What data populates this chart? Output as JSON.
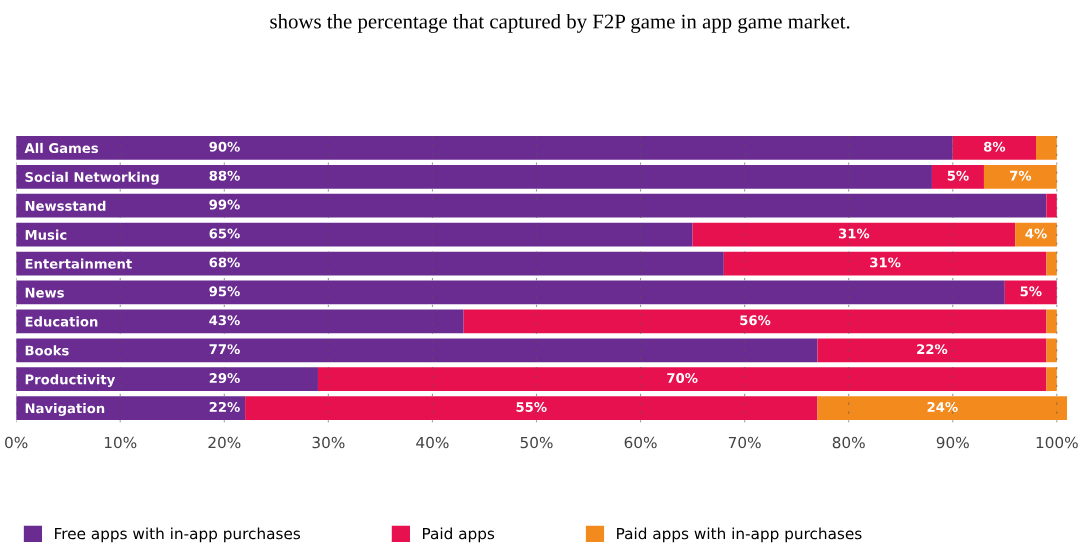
{
  "chart_data": {
    "type": "bar",
    "orientation": "horizontal",
    "stacked": true,
    "annotations": [
      "shows the percentage that captured by F2P game in app game market."
    ],
    "categories": [
      "All Games",
      "Social Networking",
      "Newsstand",
      "Music",
      "Entertainment",
      "News",
      "Education",
      "Books",
      "Productivity",
      "Navigation"
    ],
    "series": [
      {
        "name": "Free apps with in-app purchases",
        "color": "#6a2c91",
        "values": [
          90,
          88,
          99,
          65,
          68,
          95,
          43,
          77,
          29,
          22
        ],
        "value_labels": [
          "90%",
          "88%",
          "99%",
          "65%",
          "68%",
          "95%",
          "43%",
          "77%",
          "29%",
          "22%"
        ]
      },
      {
        "name": "Paid apps",
        "color": "#e8114f",
        "values": [
          8,
          5,
          1,
          31,
          31,
          5,
          56,
          22,
          70,
          55
        ],
        "value_labels": [
          "8%",
          "5%",
          null,
          "31%",
          "31%",
          "5%",
          "56%",
          "22%",
          "70%",
          "55%"
        ]
      },
      {
        "name": "Paid apps with in-app purchases",
        "color": "#f28a1e",
        "values": [
          2,
          7,
          0,
          4,
          1,
          0,
          1,
          1,
          1,
          24
        ],
        "value_labels": [
          null,
          "7%",
          null,
          "4%",
          null,
          null,
          null,
          null,
          null,
          "24%"
        ]
      }
    ],
    "xlim": [
      0,
      101
    ],
    "xticks": [
      {
        "value": 0,
        "label": "0%"
      },
      {
        "value": 10,
        "label": "10%"
      },
      {
        "value": 20,
        "label": "20%"
      },
      {
        "value": 30,
        "label": "30%"
      },
      {
        "value": 40,
        "label": "40%"
      },
      {
        "value": 50,
        "label": "50%"
      },
      {
        "value": 60,
        "label": "60%"
      },
      {
        "value": 70,
        "label": "70%"
      },
      {
        "value": 80,
        "label": "80%"
      },
      {
        "value": 90,
        "label": "90%"
      },
      {
        "value": 100,
        "label": "100%"
      }
    ],
    "grid": "x",
    "legend": "bottom"
  }
}
